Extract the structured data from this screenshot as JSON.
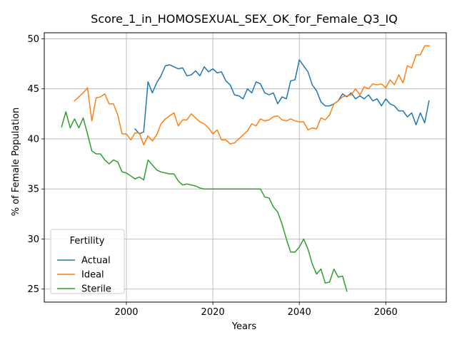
{
  "chart_data": {
    "type": "line",
    "title": "Score_1_in_HOMOSEXUAL_SEX_OK_for_Female_Q3_IQ",
    "xlabel": "Years",
    "ylabel": "% of Female Population",
    "xlim": [
      1981,
      2074
    ],
    "ylim": [
      23.7,
      50.6
    ],
    "xticks": [
      2000,
      2020,
      2040,
      2060
    ],
    "yticks": [
      25,
      30,
      35,
      40,
      45,
      50
    ],
    "grid": true,
    "legend": {
      "title": "Fertility",
      "position": "lower-left"
    },
    "series": [
      {
        "name": "Actual",
        "color": "#1f77b4",
        "x": [
          2002,
          2003,
          2004,
          2005,
          2006,
          2007,
          2008,
          2009,
          2010,
          2011,
          2012,
          2013,
          2014,
          2015,
          2016,
          2017,
          2018,
          2019,
          2020,
          2021,
          2022,
          2023,
          2024,
          2025,
          2026,
          2027,
          2028,
          2029,
          2030,
          2031,
          2032,
          2033,
          2034,
          2035,
          2036,
          2037,
          2038,
          2039,
          2040,
          2041,
          2042,
          2043,
          2044,
          2045,
          2046,
          2047,
          2048,
          2049,
          2050,
          2051,
          2052,
          2053,
          2054,
          2055,
          2056,
          2057,
          2058,
          2059,
          2060,
          2061,
          2062,
          2063,
          2064,
          2065,
          2066,
          2067,
          2068,
          2069,
          2070
        ],
        "y": [
          41.0,
          40.5,
          40.7,
          45.7,
          44.6,
          45.6,
          46.3,
          47.3,
          47.4,
          47.2,
          47.0,
          47.1,
          46.3,
          46.4,
          46.8,
          46.3,
          47.2,
          46.7,
          47.0,
          46.6,
          46.7,
          45.8,
          45.4,
          44.4,
          44.3,
          44.0,
          45.0,
          44.6,
          45.7,
          45.5,
          44.6,
          44.4,
          44.6,
          43.5,
          44.2,
          44.0,
          45.8,
          45.9,
          47.9,
          47.3,
          46.7,
          45.4,
          44.8,
          43.7,
          43.3,
          43.3,
          43.5,
          43.8,
          44.5,
          44.2,
          44.6,
          44.0,
          44.3,
          44.0,
          44.4,
          43.8,
          44.0,
          43.3,
          44.0,
          43.5,
          43.3,
          42.8,
          42.8,
          42.2,
          42.6,
          41.4,
          42.6,
          41.6,
          43.8
        ]
      },
      {
        "name": "Ideal",
        "color": "#ff7f0e",
        "x": [
          1988,
          1989,
          1990,
          1991,
          1992,
          1993,
          1994,
          1995,
          1996,
          1997,
          1998,
          1999,
          2000,
          2001,
          2002,
          2003,
          2004,
          2005,
          2006,
          2007,
          2008,
          2009,
          2010,
          2011,
          2012,
          2013,
          2014,
          2015,
          2016,
          2017,
          2018,
          2019,
          2020,
          2021,
          2022,
          2023,
          2024,
          2025,
          2026,
          2027,
          2028,
          2029,
          2030,
          2031,
          2032,
          2033,
          2034,
          2035,
          2036,
          2037,
          2038,
          2039,
          2040,
          2041,
          2042,
          2043,
          2044,
          2045,
          2046,
          2047,
          2048,
          2049,
          2050,
          2051,
          2052,
          2053,
          2054,
          2055,
          2056,
          2057,
          2058,
          2059,
          2060,
          2061,
          2062,
          2063,
          2064,
          2065,
          2066,
          2067,
          2068,
          2069,
          2070
        ],
        "y": [
          43.8,
          44.2,
          44.6,
          45.1,
          41.8,
          44.1,
          44.2,
          44.5,
          43.5,
          43.5,
          42.4,
          40.5,
          40.5,
          39.9,
          40.6,
          40.6,
          39.4,
          40.3,
          39.8,
          40.4,
          41.5,
          42.0,
          42.3,
          42.6,
          41.3,
          41.9,
          41.9,
          42.5,
          42.1,
          41.7,
          41.5,
          41.1,
          40.5,
          40.9,
          39.9,
          39.9,
          39.5,
          39.6,
          40.0,
          40.4,
          40.8,
          41.5,
          41.3,
          42.0,
          41.8,
          41.9,
          42.2,
          42.3,
          41.9,
          41.8,
          42.0,
          41.8,
          41.7,
          41.7,
          40.9,
          41.1,
          41.0,
          42.1,
          41.9,
          42.4,
          43.5,
          43.8,
          44.2,
          44.3,
          44.4,
          45.0,
          44.4,
          45.2,
          45.0,
          45.5,
          45.4,
          45.5,
          45.1,
          45.9,
          45.4,
          46.4,
          45.6,
          47.3,
          47.1,
          48.4,
          48.4,
          49.3,
          49.3
        ]
      },
      {
        "name": "Sterile",
        "color": "#2ca02c",
        "x": [
          1985,
          1986,
          1987,
          1988,
          1989,
          1990,
          1991,
          1992,
          1993,
          1994,
          1995,
          1996,
          1997,
          1998,
          1999,
          2000,
          2001,
          2002,
          2003,
          2004,
          2005,
          2006,
          2007,
          2008,
          2009,
          2010,
          2011,
          2012,
          2013,
          2014,
          2015,
          2016,
          2017,
          2018,
          2019,
          2020,
          2021,
          2022,
          2023,
          2024,
          2025,
          2026,
          2027,
          2028,
          2029,
          2030,
          2031,
          2032,
          2033,
          2034,
          2035,
          2036,
          2037,
          2038,
          2039,
          2040,
          2041,
          2042,
          2043,
          2044,
          2045,
          2046,
          2047,
          2048,
          2049,
          2050,
          2051
        ],
        "y": [
          41.2,
          42.7,
          41.1,
          42.0,
          41.1,
          42.1,
          40.5,
          38.8,
          38.5,
          38.5,
          37.9,
          37.5,
          37.9,
          37.7,
          36.7,
          36.6,
          36.3,
          36.0,
          36.2,
          35.9,
          37.9,
          37.4,
          36.9,
          36.7,
          36.6,
          36.5,
          36.5,
          35.8,
          35.4,
          35.5,
          35.4,
          35.3,
          35.1,
          35.0,
          35.0,
          35.0,
          35.0,
          35.0,
          35.0,
          35.0,
          35.0,
          35.0,
          35.0,
          35.0,
          35.0,
          35.0,
          35.0,
          34.2,
          34.1,
          33.2,
          32.7,
          31.5,
          30.0,
          28.7,
          28.7,
          29.2,
          30.0,
          29.0,
          27.5,
          26.5,
          27.0,
          25.6,
          25.7,
          27.0,
          26.2,
          26.3,
          24.8
        ]
      }
    ]
  }
}
